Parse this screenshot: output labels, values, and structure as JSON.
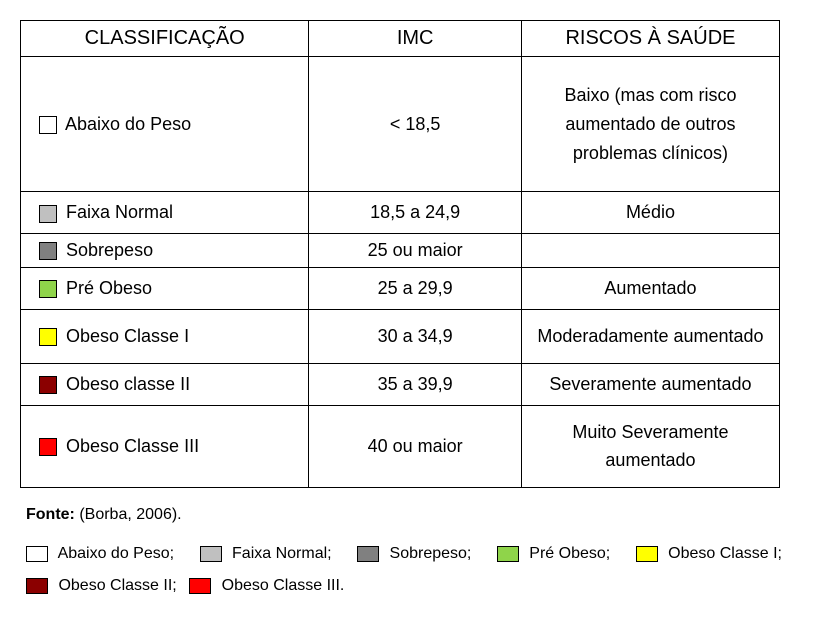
{
  "table": {
    "headers": {
      "classification": "CLASSIFICAÇÃO",
      "imc": "IMC",
      "risk": "RISCOS À SAÚDE"
    },
    "rows": [
      {
        "label": "Abaixo do Peso",
        "swatch_color": "#ffffff",
        "imc": "< 18,5",
        "risk": "Baixo (mas com risco aumentado de outros problemas clínicos)"
      },
      {
        "label": "Faixa Normal",
        "swatch_color": "#c0c0c0",
        "imc": "18,5 a 24,9",
        "risk": "Médio"
      },
      {
        "label": "Sobrepeso",
        "swatch_color": "#808080",
        "imc": "25 ou maior",
        "risk": ""
      },
      {
        "label": "Pré Obeso",
        "swatch_color": "#8fd44a",
        "imc": "25 a 29,9",
        "risk": "Aumentado"
      },
      {
        "label": "Obeso Classe I",
        "swatch_color": "#ffff00",
        "imc": "30 a 34,9",
        "risk": "Moderadamente aumentado"
      },
      {
        "label": "Obeso classe II",
        "swatch_color": "#8b0000",
        "imc": "35 a 39,9",
        "risk": "Severamente aumentado"
      },
      {
        "label": "Obeso Classe III",
        "swatch_color": "#ff0000",
        "imc": "40 ou maior",
        "risk": "Muito Severamente aumentado"
      }
    ],
    "column_widths": {
      "classification": "38%",
      "imc": "28%",
      "risk": "34%"
    }
  },
  "source": {
    "label": "Fonte:",
    "text": "(Borba, 2006)."
  },
  "legend": {
    "items": [
      {
        "swatch_color": "#ffffff",
        "label": "Abaixo do Peso;"
      },
      {
        "swatch_color": "#c0c0c0",
        "label": "Faixa Normal;"
      },
      {
        "swatch_color": "#808080",
        "label": "Sobrepeso;"
      },
      {
        "swatch_color": "#8fd44a",
        "label": "Pré Obeso;"
      },
      {
        "swatch_color": "#ffff00",
        "label": "Obeso Classe I;"
      },
      {
        "swatch_color": "#8b0000",
        "label": "Obeso Classe II;"
      },
      {
        "swatch_color": "#ff0000",
        "label": "Obeso Classe III."
      }
    ]
  },
  "styles": {
    "border_color": "#000000",
    "background_color": "#ffffff",
    "header_fontsize": 20,
    "cell_fontsize": 18,
    "legend_fontsize": 16
  }
}
